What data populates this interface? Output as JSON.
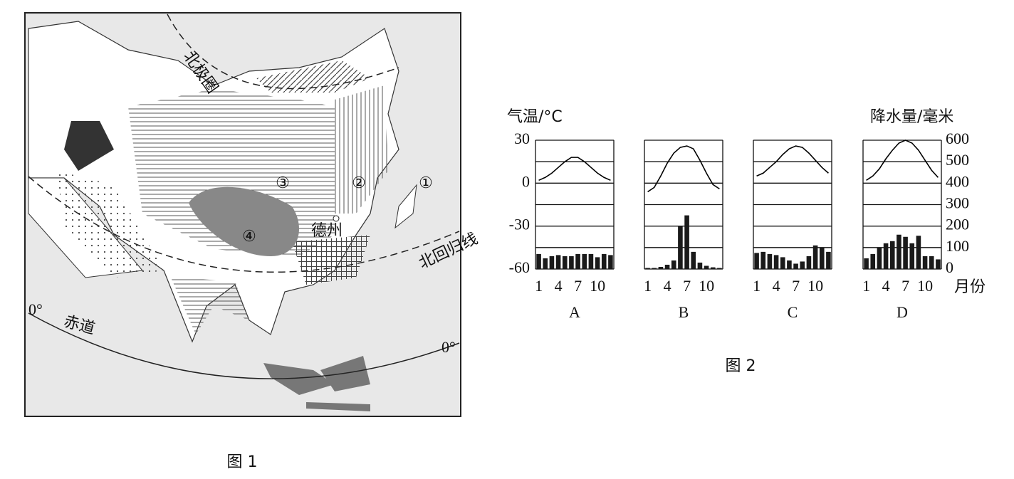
{
  "map": {
    "caption": "图 1",
    "labels": {
      "arctic": "北极圈",
      "tropic": "北回归线",
      "equator": "赤道",
      "lon_west": "0°",
      "lon_east": "0°",
      "city": "德州",
      "p1": "①",
      "p2": "②",
      "p3": "③",
      "p4": "④"
    }
  },
  "figure2_caption": "图 2",
  "chart_data": [
    {
      "type": "climate",
      "label": "A",
      "ylabel": "气温/°C",
      "categories": [
        "1",
        null,
        null,
        "4",
        null,
        null,
        "7",
        null,
        null,
        "10",
        null,
        null
      ],
      "ylim": [
        -60,
        30
      ],
      "yticks": [
        -60,
        -30,
        0,
        30
      ],
      "ytick_labels": true,
      "y2lim": [
        0,
        600
      ],
      "y2ticks": [
        0,
        100,
        200,
        300,
        400,
        500,
        600
      ],
      "y2tick_labels": false,
      "series": [
        {
          "type": "line",
          "color": "#000000",
          "values": [
            2,
            4,
            7,
            11,
            15,
            18,
            18,
            15,
            11,
            7,
            4,
            2
          ]
        },
        {
          "type": "bar",
          "axis": "y2",
          "color": "#1a1a1a",
          "values": [
            70,
            50,
            60,
            65,
            60,
            60,
            70,
            70,
            70,
            55,
            70,
            65
          ]
        }
      ]
    },
    {
      "type": "climate",
      "label": "B",
      "categories": [
        "1",
        null,
        null,
        "4",
        null,
        null,
        "7",
        null,
        null,
        "10",
        null,
        null
      ],
      "ylim": [
        -60,
        30
      ],
      "ytick_labels": false,
      "y2lim": [
        0,
        600
      ],
      "y2ticks": [
        0,
        100,
        200,
        300,
        400,
        500,
        600
      ],
      "y2tick_labels": false,
      "series": [
        {
          "type": "line",
          "color": "#000000",
          "values": [
            -6,
            -3,
            5,
            14,
            21,
            25,
            26,
            24,
            16,
            7,
            -1,
            -4
          ]
        },
        {
          "type": "bar",
          "axis": "y2",
          "color": "#1a1a1a",
          "values": [
            5,
            5,
            10,
            20,
            40,
            200,
            250,
            80,
            30,
            15,
            8,
            5
          ]
        }
      ]
    },
    {
      "type": "climate",
      "label": "C",
      "categories": [
        "1",
        null,
        null,
        "4",
        null,
        null,
        "7",
        null,
        null,
        "10",
        null,
        null
      ],
      "ylim": [
        -60,
        30
      ],
      "ytick_labels": false,
      "y2lim": [
        0,
        600
      ],
      "y2ticks": [
        0,
        100,
        200,
        300,
        400,
        500,
        600
      ],
      "y2tick_labels": false,
      "series": [
        {
          "type": "line",
          "color": "#000000",
          "values": [
            5,
            7,
            11,
            15,
            20,
            24,
            26,
            25,
            21,
            16,
            11,
            7
          ]
        },
        {
          "type": "bar",
          "axis": "y2",
          "color": "#1a1a1a",
          "values": [
            75,
            80,
            70,
            65,
            55,
            40,
            25,
            35,
            60,
            110,
            100,
            80
          ]
        }
      ]
    },
    {
      "type": "climate",
      "label": "D",
      "y2label": "降水量/毫米",
      "xlabel": "月份",
      "categories": [
        "1",
        null,
        null,
        "4",
        null,
        null,
        "7",
        null,
        null,
        "10",
        null,
        null
      ],
      "ylim": [
        -60,
        30
      ],
      "ytick_labels": false,
      "y2lim": [
        0,
        600
      ],
      "y2ticks": [
        0,
        100,
        200,
        300,
        400,
        500,
        600
      ],
      "y2tick_labels": true,
      "series": [
        {
          "type": "line",
          "color": "#000000",
          "values": [
            2,
            5,
            10,
            17,
            23,
            28,
            30,
            28,
            23,
            16,
            9,
            4
          ]
        },
        {
          "type": "bar",
          "axis": "y2",
          "color": "#1a1a1a",
          "values": [
            50,
            70,
            100,
            120,
            130,
            160,
            150,
            120,
            155,
            60,
            60,
            45
          ]
        }
      ]
    }
  ]
}
